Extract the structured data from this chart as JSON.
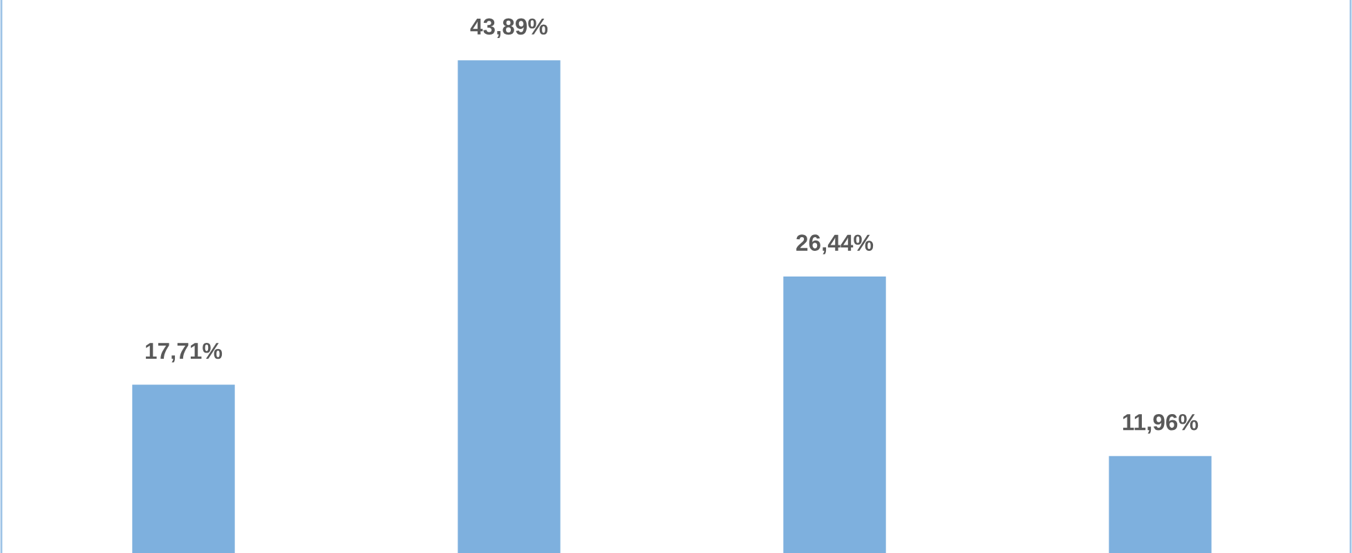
{
  "chart_data": {
    "type": "bar",
    "categories": [
      null,
      null,
      null,
      null
    ],
    "values": [
      17.71,
      43.89,
      26.44,
      11.96
    ],
    "value_labels": [
      "17,71%",
      "43,89%",
      "26,44%",
      "11,96%"
    ],
    "color": "#7eb0de"
  }
}
